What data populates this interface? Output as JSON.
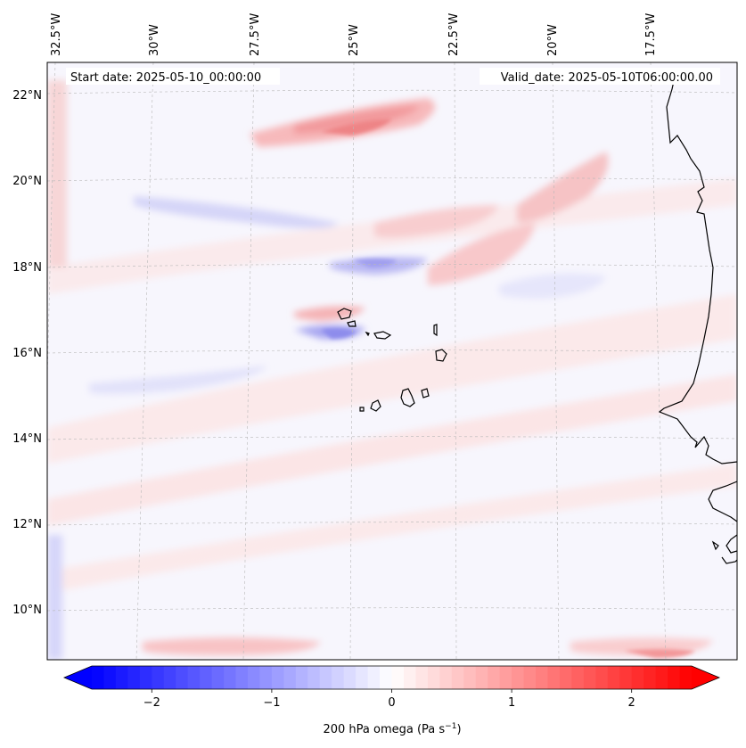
{
  "map": {
    "start_date": "Start date: 2025-05-10_00:00:00",
    "valid_date": "Valid_date: 2025-05-10T06:00:00.00",
    "lon_labels": [
      "32.5°W",
      "30°W",
      "27.5°W",
      "25°W",
      "22.5°W",
      "20°W",
      "17.5°W"
    ],
    "lat_labels": [
      "22°N",
      "20°N",
      "18°N",
      "16°N",
      "14°N",
      "12°N",
      "10°N"
    ],
    "field": "200 hPa omega",
    "units": "Pa s",
    "units_exponent": "−1"
  },
  "colorbar": {
    "tick_labels": [
      "−2",
      "−1",
      "0",
      "1",
      "2"
    ],
    "tick_values": [
      -2,
      -1,
      0,
      1,
      2
    ],
    "range": [
      -2.5,
      2.5
    ],
    "label_prefix": "200 hPa omega (Pa s",
    "label_exponent": "−1",
    "label_suffix": ")",
    "colormap": "bwr",
    "min_color": "#0000ff",
    "mid_color": "#ffffff",
    "max_color": "#ff0000"
  }
}
